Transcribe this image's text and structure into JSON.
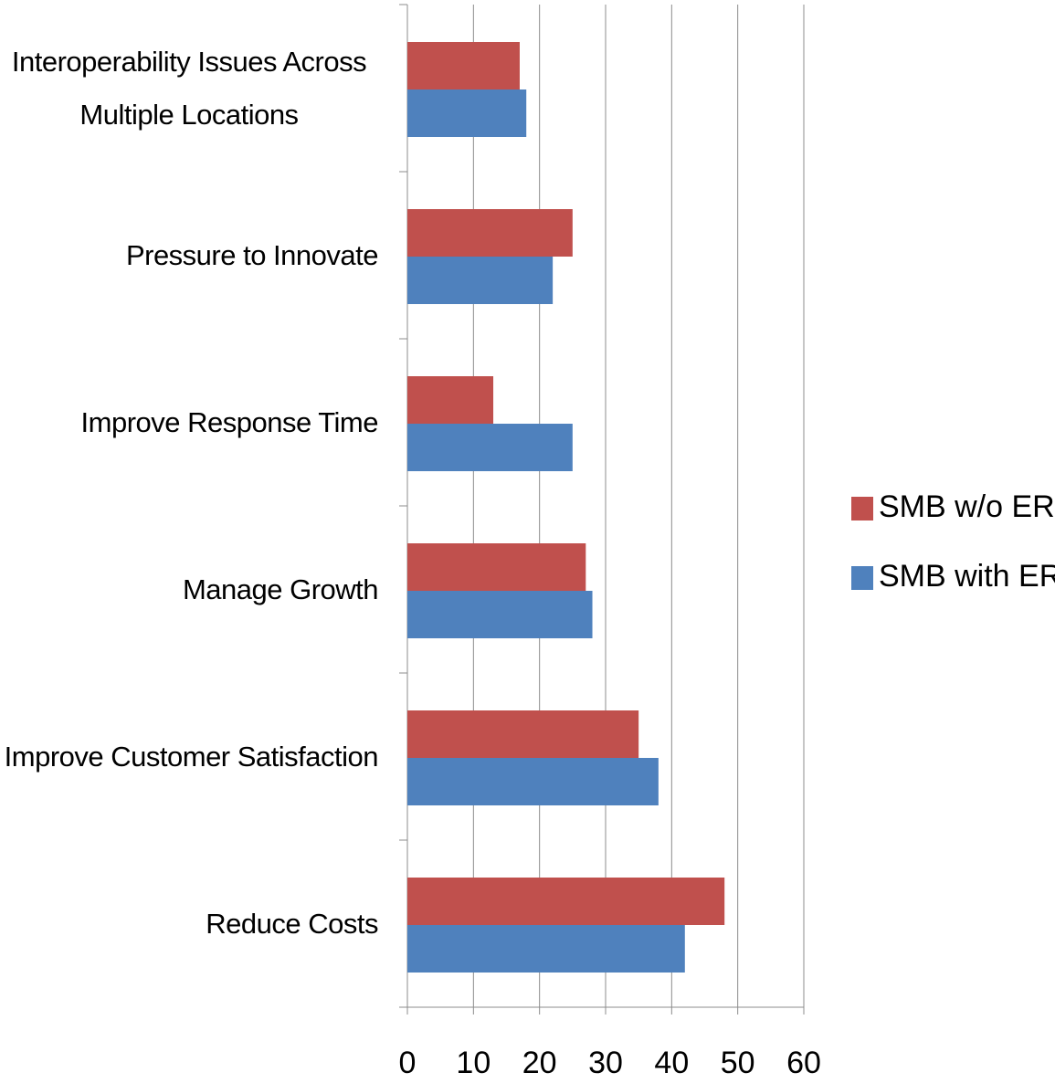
{
  "chart_data": {
    "type": "bar",
    "orientation": "horizontal",
    "categories": [
      "Interoperability Issues Across Multiple Locations",
      "Pressure to Innovate",
      "Improve Response Time",
      "Manage Growth",
      "Improve Customer Satisfaction",
      "Reduce Costs"
    ],
    "series": [
      {
        "name": "SMB w/o ERP",
        "color": "#c0504d",
        "values": [
          17,
          25,
          13,
          27,
          35,
          48
        ]
      },
      {
        "name": "SMB with ERP",
        "color": "#4f81bd",
        "values": [
          18,
          22,
          25,
          28,
          38,
          42
        ]
      }
    ],
    "xlim": [
      0,
      60
    ],
    "xticks": [
      0,
      10,
      20,
      30,
      40,
      50,
      60
    ],
    "grid": true,
    "legend": "right"
  }
}
